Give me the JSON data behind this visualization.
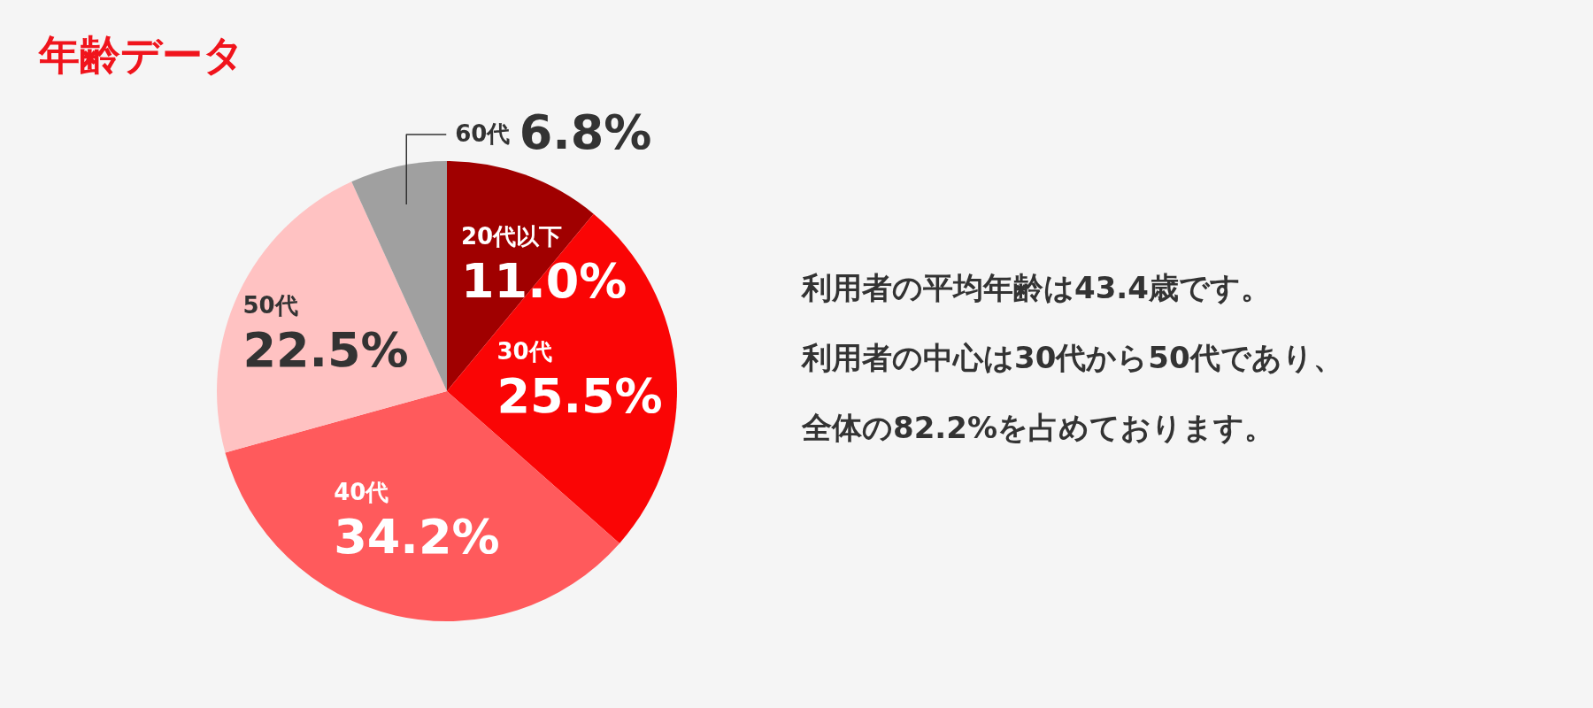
{
  "chart_data": {
    "type": "pie",
    "title": "年齢データ",
    "categories": [
      "20代以下",
      "30代",
      "40代",
      "50代",
      "60代"
    ],
    "values": [
      11.0,
      25.5,
      34.2,
      22.5,
      6.8
    ],
    "colors": [
      "#a00000",
      "#fa0505",
      "#ff5a5c",
      "#ffc2c2",
      "#a0a0a0"
    ],
    "value_labels": [
      "11.0%",
      "25.5%",
      "34.2%",
      "22.5%",
      "6.8%"
    ],
    "annotations": [
      "利用者の平均年齢は43.4歳です。",
      "利用者の中心は30代から50代であり、",
      "全体の82.2%を占めております。"
    ]
  }
}
